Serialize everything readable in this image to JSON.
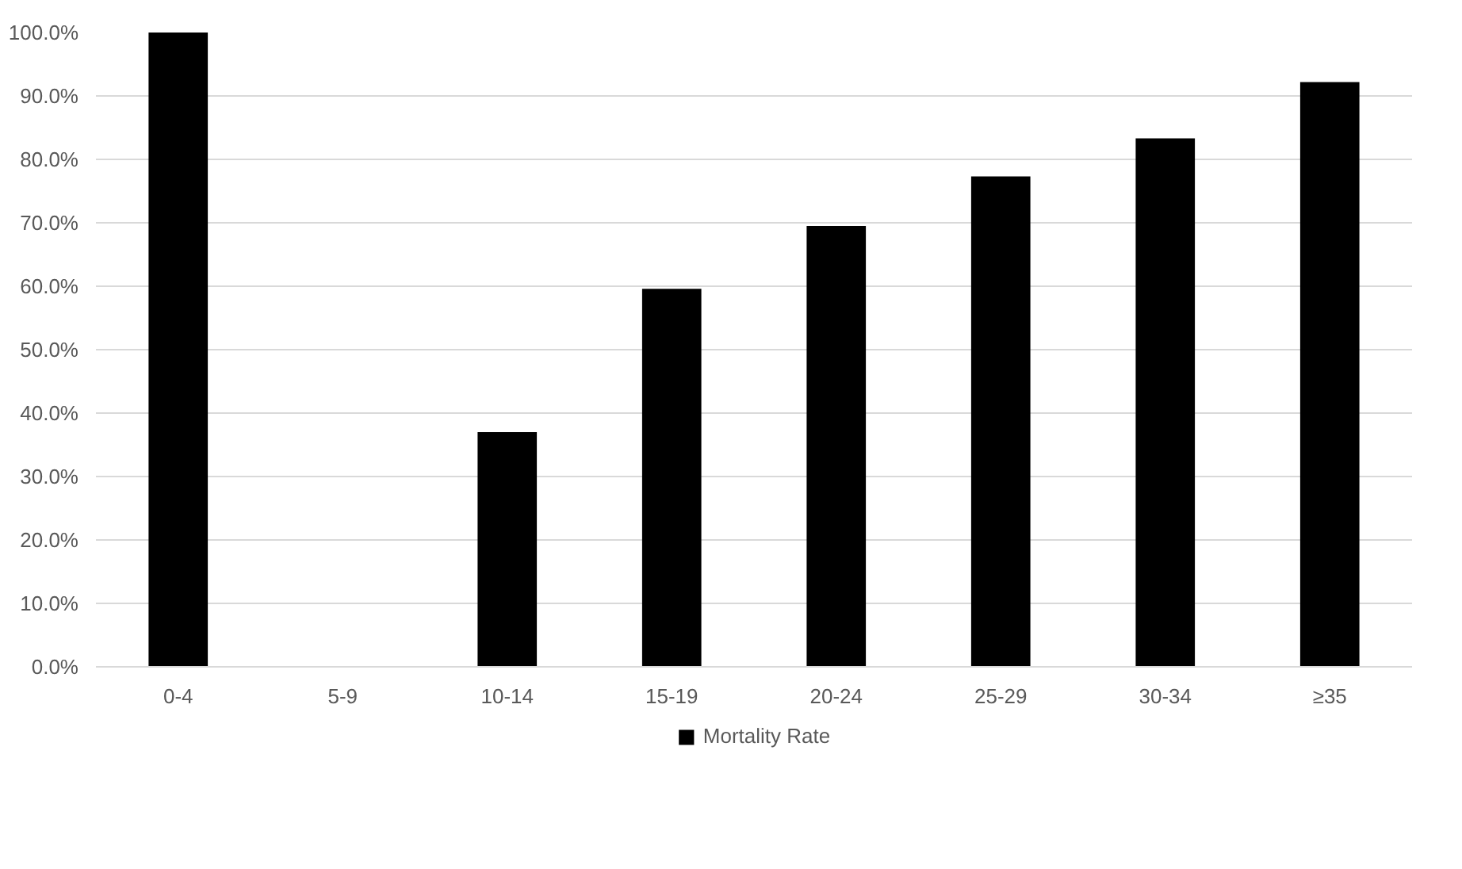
{
  "chart_data": {
    "type": "bar",
    "categories": [
      "0-4",
      "5-9",
      "10-14",
      "15-19",
      "20-24",
      "25-29",
      "30-34",
      "≥35"
    ],
    "series": [
      {
        "name": "Mortality Rate",
        "color": "#000000",
        "values": [
          100,
          0,
          37.0,
          59.6,
          69.5,
          77.3,
          83.3,
          92.2
        ]
      }
    ],
    "ylim": [
      0,
      100
    ],
    "yticks": [
      {
        "value": 0,
        "label": "0.0%"
      },
      {
        "value": 10,
        "label": "10.0%"
      },
      {
        "value": 20,
        "label": "20.0%"
      },
      {
        "value": 30,
        "label": "30.0%"
      },
      {
        "value": 40,
        "label": "40.0%"
      },
      {
        "value": 50,
        "label": "50.0%"
      },
      {
        "value": 60,
        "label": "60.0%"
      },
      {
        "value": 70,
        "label": "70.0%"
      },
      {
        "value": 80,
        "label": "80.0%"
      },
      {
        "value": 90,
        "label": "90.0%"
      },
      {
        "value": 100,
        "label": "100.0%"
      }
    ],
    "grid": "y",
    "legend": "bottom"
  }
}
